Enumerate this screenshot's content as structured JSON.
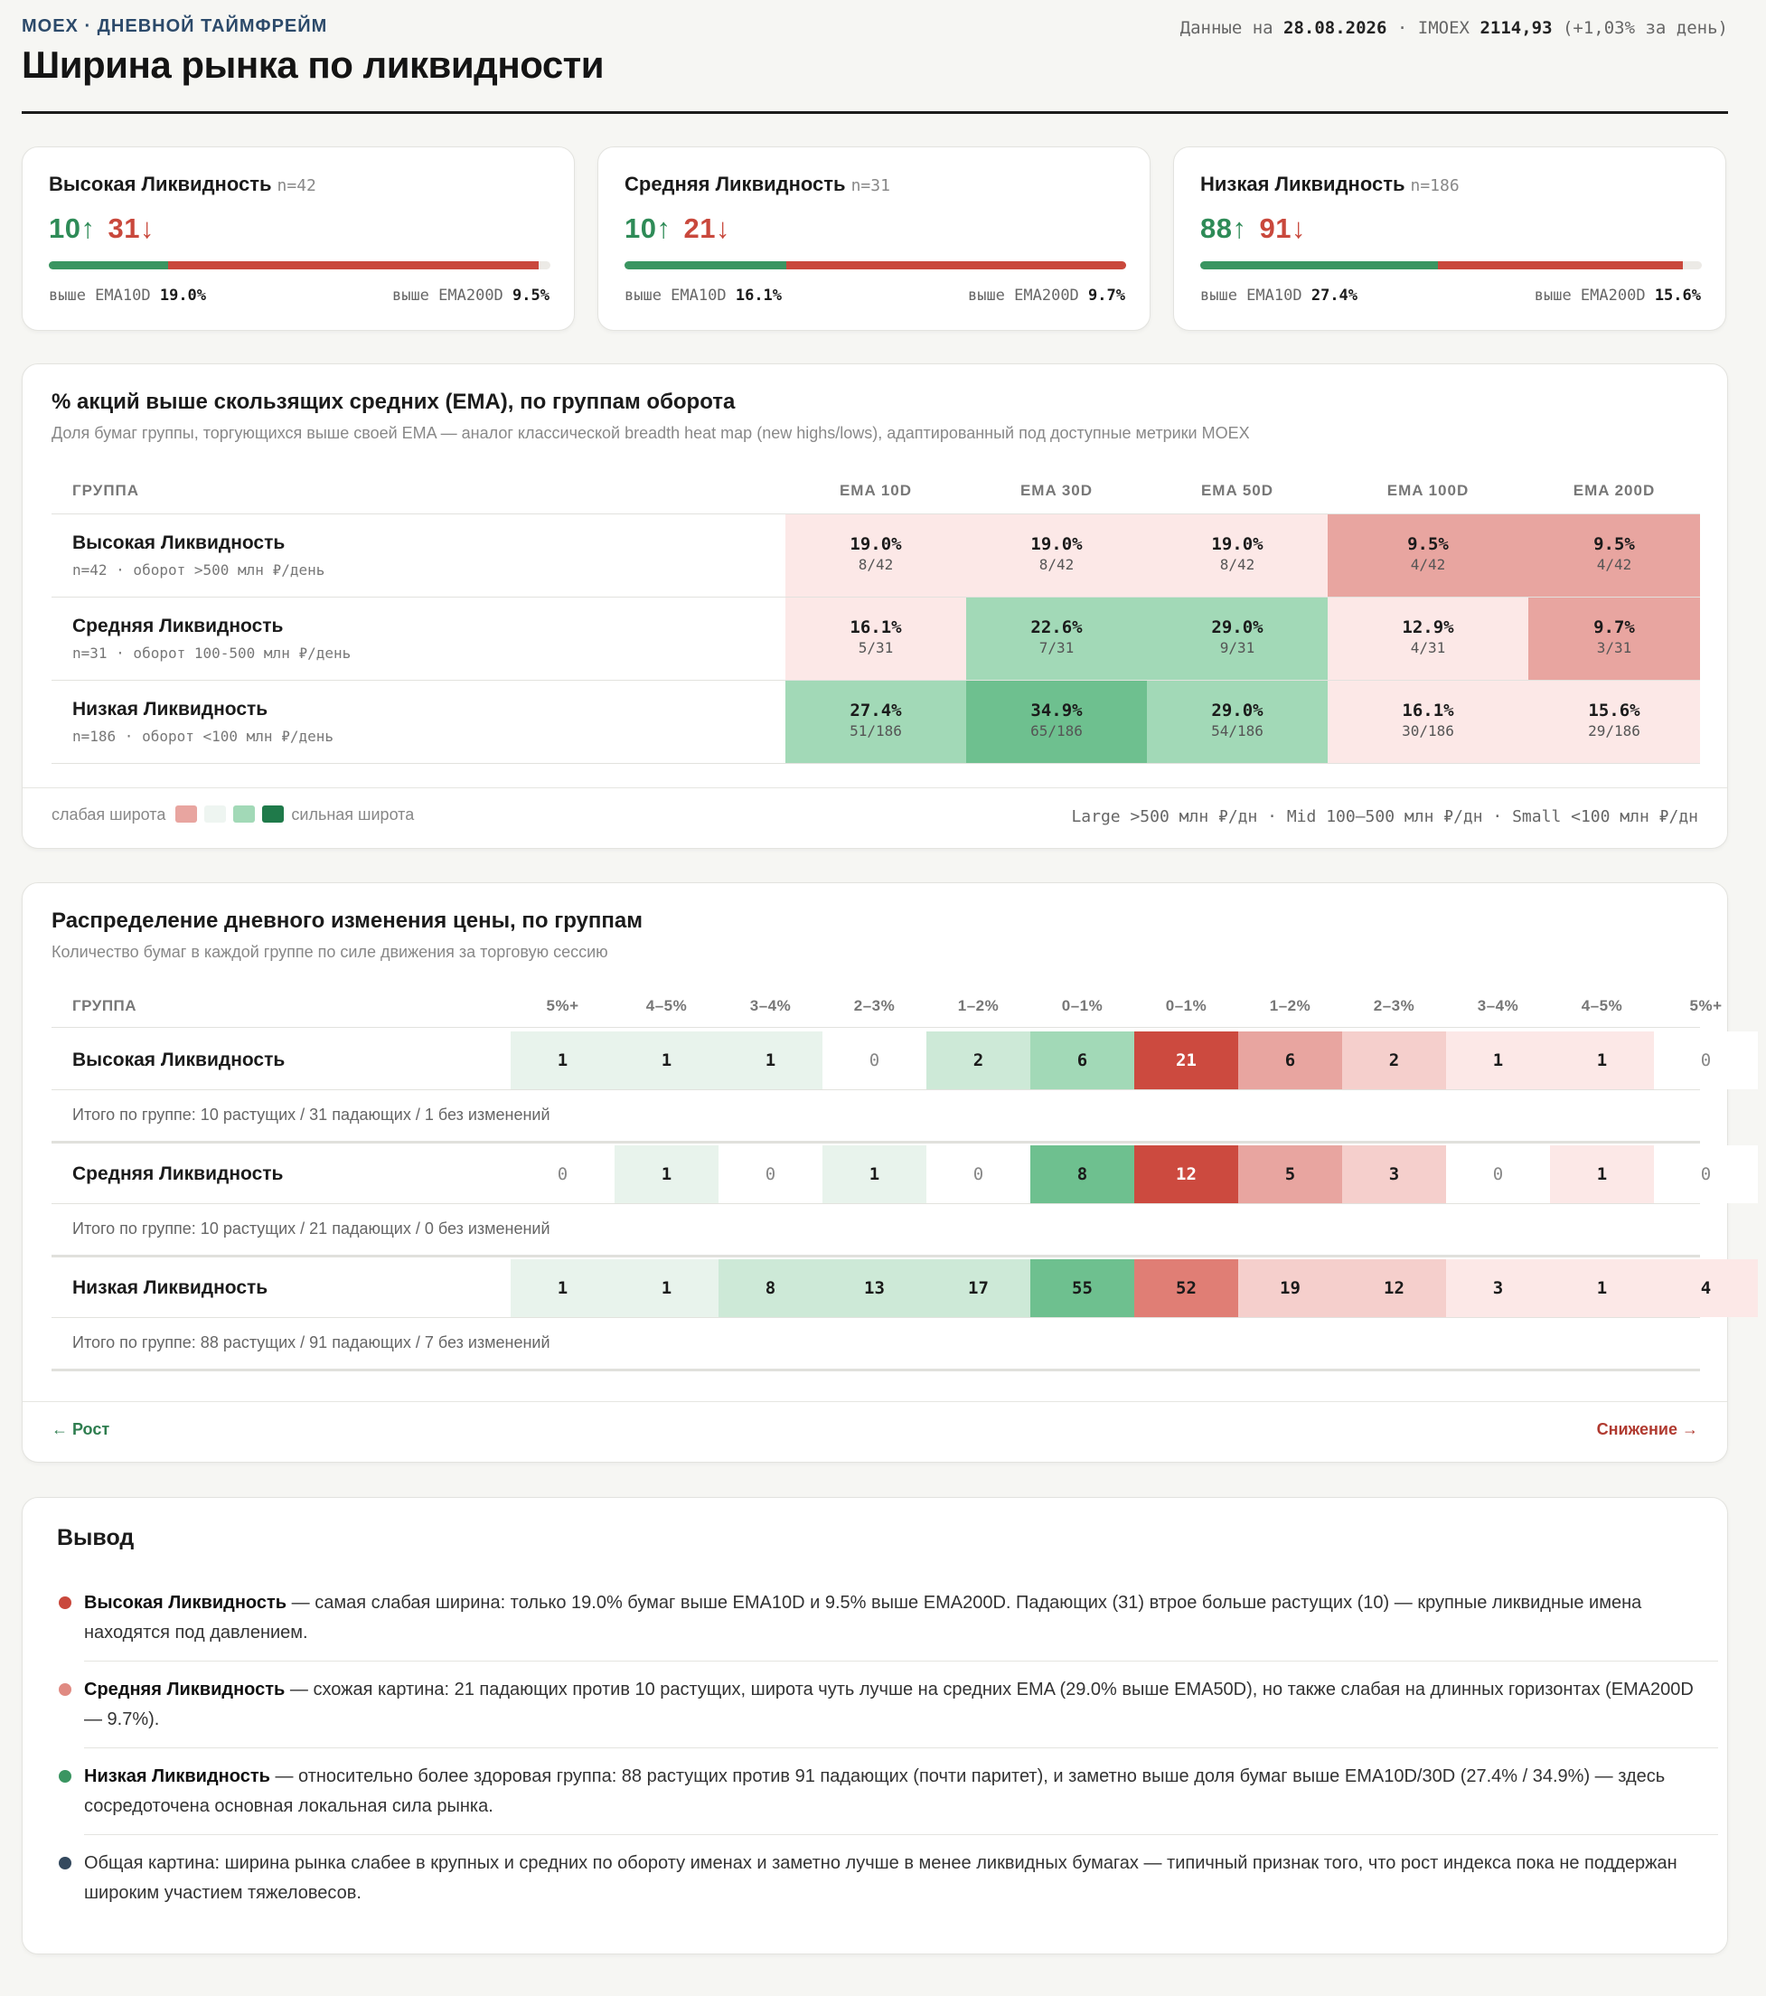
{
  "header": {
    "kicker": "MOEX · ДНЕВНОЙ ТАЙМФРЕЙМ",
    "title": "Ширина рынка по ликвидности",
    "meta_prefix": "Данные на",
    "date": "28.08.2026",
    "sep": "·",
    "index_name": "IMOEX",
    "index_value": "2114,93",
    "index_change": "(+1,03% за день)"
  },
  "kpis": [
    {
      "name": "Высокая Ликвидность",
      "n": "n=42",
      "up": "10↑",
      "down": "31↓",
      "up_frac": 0.238,
      "down_frac": 0.738,
      "ema10_label": "выше EMA10D",
      "ema10": "19.0%",
      "ema200_label": "выше EMA200D",
      "ema200": "9.5%"
    },
    {
      "name": "Средняя Ликвидность",
      "n": "n=31",
      "up": "10↑",
      "down": "21↓",
      "up_frac": 0.323,
      "down_frac": 0.677,
      "ema10_label": "выше EMA10D",
      "ema10": "16.1%",
      "ema200_label": "выше EMA200D",
      "ema200": "9.7%"
    },
    {
      "name": "Низкая Ликвидность",
      "n": "n=186",
      "up": "88↑",
      "down": "91↓",
      "up_frac": 0.473,
      "down_frac": 0.489,
      "ema10_label": "выше EMA10D",
      "ema10": "27.4%",
      "ema200_label": "выше EMA200D",
      "ema200": "15.6%"
    }
  ],
  "ema_section": {
    "title": "% акций выше скользящих средних (EMA), по группам оборота",
    "subtitle": "Доля бумаг группы, торгующихся выше своей EMA — аналог классической breadth heat map (new highs/lows), адаптированный под доступные метрики MOEX",
    "group_header": "ГРУППА",
    "columns": [
      "EMA 10D",
      "EMA 30D",
      "EMA 50D",
      "EMA 100D",
      "EMA 200D"
    ],
    "rows": [
      {
        "name": "Высокая Ликвидность",
        "sub": "n=42 · оборот >500 млн ₽/день",
        "cells": [
          {
            "p": "19.0%",
            "f": "8/42",
            "c": "#fce8e7"
          },
          {
            "p": "19.0%",
            "f": "8/42",
            "c": "#fce8e7"
          },
          {
            "p": "19.0%",
            "f": "8/42",
            "c": "#fce8e7"
          },
          {
            "p": "9.5%",
            "f": "4/42",
            "c": "#e8a5a0"
          },
          {
            "p": "9.5%",
            "f": "4/42",
            "c": "#e8a5a0"
          }
        ]
      },
      {
        "name": "Средняя Ликвидность",
        "sub": "n=31 · оборот 100-500 млн ₽/день",
        "cells": [
          {
            "p": "16.1%",
            "f": "5/31",
            "c": "#fce8e7"
          },
          {
            "p": "22.6%",
            "f": "7/31",
            "c": "#a2d9b7"
          },
          {
            "p": "29.0%",
            "f": "9/31",
            "c": "#a2d9b7"
          },
          {
            "p": "12.9%",
            "f": "4/31",
            "c": "#fce8e7"
          },
          {
            "p": "9.7%",
            "f": "3/31",
            "c": "#e8a5a0"
          }
        ]
      },
      {
        "name": "Низкая Ликвидность",
        "sub": "n=186 · оборот <100 млн ₽/день",
        "cells": [
          {
            "p": "27.4%",
            "f": "51/186",
            "c": "#a2d9b7"
          },
          {
            "p": "34.9%",
            "f": "65/186",
            "c": "#6ec08f"
          },
          {
            "p": "29.0%",
            "f": "54/186",
            "c": "#a2d9b7"
          },
          {
            "p": "16.1%",
            "f": "30/186",
            "c": "#fce8e7"
          },
          {
            "p": "15.6%",
            "f": "29/186",
            "c": "#fce8e7"
          }
        ]
      }
    ],
    "legend_weak": "слабая широта",
    "legend_strong": "сильная широта",
    "legend_colors": [
      "#e8a5a0",
      "#eef5f1",
      "#a2d9b7",
      "#1f7a4a"
    ],
    "legend_right": "Large >500 млн ₽/дн · Mid 100–500 млн ₽/дн · Small <100 млн ₽/дн"
  },
  "dist_section": {
    "title": "Распределение дневного изменения цены, по группам",
    "subtitle": "Количество бумаг в каждой группе по силе движения за торговую сессию",
    "group_header": "ГРУППА",
    "columns": [
      "5%+",
      "4–5%",
      "3–4%",
      "2–3%",
      "1–2%",
      "0–1%",
      "0–1%",
      "1–2%",
      "2–3%",
      "3–4%",
      "4–5%",
      "5%+"
    ],
    "rows": [
      {
        "name": "Высокая Ликвидность",
        "values": [
          "1",
          "1",
          "1",
          "0",
          "2",
          "6",
          "21",
          "6",
          "2",
          "1",
          "1",
          "0"
        ],
        "colors": [
          "#e8f3ec",
          "#e8f3ec",
          "#e8f3ec",
          "#ffffff",
          "#cde9d7",
          "#a2d9b7",
          "#cc4a3f",
          "#e8a5a0",
          "#f5cfcc",
          "#fce8e7",
          "#fce8e7",
          "#ffffff"
        ],
        "summary": "Итого по группе: 10 растущих / 31 падающих / 1 без изменений"
      },
      {
        "name": "Средняя Ликвидность",
        "values": [
          "0",
          "1",
          "0",
          "1",
          "0",
          "8",
          "12",
          "5",
          "3",
          "0",
          "1",
          "0"
        ],
        "colors": [
          "#ffffff",
          "#e8f3ec",
          "#ffffff",
          "#e8f3ec",
          "#ffffff",
          "#6ec08f",
          "#cc4a3f",
          "#e8a5a0",
          "#f5cfcc",
          "#ffffff",
          "#fce8e7",
          "#ffffff"
        ],
        "summary": "Итого по группе: 10 растущих / 21 падающих / 0 без изменений"
      },
      {
        "name": "Низкая Ликвидность",
        "values": [
          "1",
          "1",
          "8",
          "13",
          "17",
          "55",
          "52",
          "19",
          "12",
          "3",
          "1",
          "4"
        ],
        "colors": [
          "#e8f3ec",
          "#e8f3ec",
          "#cde9d7",
          "#cde9d7",
          "#cde9d7",
          "#6ec08f",
          "#e07e75",
          "#f5cfcc",
          "#f5cfcc",
          "#fce8e7",
          "#fce8e7",
          "#fce8e7"
        ],
        "summary": "Итого по группе: 88 растущих / 91 падающих / 7 без изменений"
      }
    ],
    "flow_left": "← Рост",
    "flow_right": "Снижение →"
  },
  "conclusion": {
    "title": "Вывод",
    "items": [
      {
        "color": "#c9483c",
        "bold": "Высокая Ликвидность",
        "text": " — самая слабая ширина: только 19.0% бумаг выше EMA10D и 9.5% выше EMA200D. Падающих (31) втрое больше растущих (10) — крупные ликвидные имена находятся под давлением."
      },
      {
        "color": "#e08a82",
        "bold": "Средняя Ликвидность",
        "text": " — схожая картина: 21 падающих против 10 растущих, широта чуть лучше на средних EMA (29.0% выше EMA50D), но также слабая на длинных горизонтах (EMA200D — 9.7%)."
      },
      {
        "color": "#3a9561",
        "bold": "Низкая Ликвидность",
        "text": " — относительно более здоровая группа: 88 растущих против 91 падающих (почти паритет), и заметно выше доля бумаг выше EMA10D/30D (27.4% / 34.9%) — здесь сосредоточена основная локальная сила рынка."
      },
      {
        "color": "#34495e",
        "bold": "",
        "text": "Общая картина: ширина рынка слабее в крупных и средних по обороту именах и заметно лучше в менее ликвидных бумагах — типичный признак того, что рост индекса пока не поддержан широким участием тяжеловесов."
      }
    ]
  }
}
